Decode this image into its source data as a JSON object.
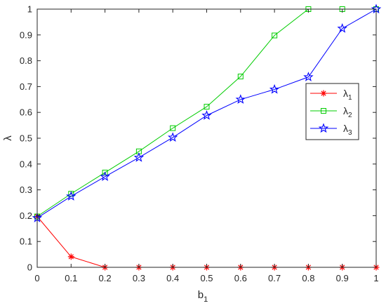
{
  "chart_data": {
    "type": "line",
    "xlabel": "b",
    "xlabel_sub": "1",
    "ylabel": "λ",
    "xlim": [
      0,
      1
    ],
    "ylim": [
      0,
      1
    ],
    "xticks": [
      0,
      0.1,
      0.2,
      0.3,
      0.4,
      0.5,
      0.6,
      0.7,
      0.8,
      0.9,
      1
    ],
    "yticks": [
      0,
      0.1,
      0.2,
      0.3,
      0.4,
      0.5,
      0.6,
      0.7,
      0.8,
      0.9,
      1
    ],
    "xtick_labels": [
      "0",
      "0.1",
      "0.2",
      "0.3",
      "0.4",
      "0.5",
      "0.6",
      "0.7",
      "0.8",
      "0.9",
      "1"
    ],
    "ytick_labels": [
      "0",
      "0.1",
      "0.2",
      "0.3",
      "0.4",
      "0.5",
      "0.6",
      "0.7",
      "0.8",
      "0.9",
      "1"
    ],
    "grid": false,
    "legend_position": "right",
    "x": [
      0,
      0.1,
      0.2,
      0.3,
      0.4,
      0.5,
      0.6,
      0.7,
      0.8,
      0.9,
      1
    ],
    "series": [
      {
        "name": "λ",
        "name_sub": "1",
        "color": "#ff0000",
        "marker": "asterisk",
        "values": [
          0.197,
          0.041,
          0,
          0,
          0,
          0,
          0,
          0,
          0,
          0,
          0
        ]
      },
      {
        "name": "λ",
        "name_sub": "2",
        "color": "#00cc00",
        "marker": "square",
        "values": [
          0.197,
          0.285,
          0.367,
          0.449,
          0.539,
          0.622,
          0.739,
          0.898,
          1,
          1,
          1
        ]
      },
      {
        "name": "λ",
        "name_sub": "3",
        "color": "#0000ff",
        "marker": "star",
        "values": [
          0.191,
          0.275,
          0.351,
          0.425,
          0.503,
          0.588,
          0.65,
          0.689,
          0.737,
          0.925,
          1
        ]
      }
    ]
  }
}
